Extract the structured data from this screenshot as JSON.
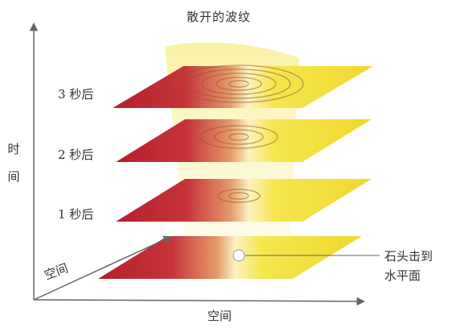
{
  "title": "散开的波纹",
  "axes": {
    "time_label": "时间",
    "space_depth_label": "空间",
    "space_x_label": "空间"
  },
  "layers": [
    {
      "id": "impact",
      "label": "",
      "ripple_rings": 0
    },
    {
      "id": "1s",
      "label": "1 秒后",
      "ripple_rings": 2
    },
    {
      "id": "2s",
      "label": "2 秒后",
      "ripple_rings": 3
    },
    {
      "id": "3s",
      "label": "3 秒后",
      "ripple_rings": 5
    }
  ],
  "callout": {
    "line1": "石头击到",
    "line2": "水平面"
  },
  "colors": {
    "plane_red": "#b8262a",
    "plane_yellow": "#f3e23a",
    "axis": "#666666"
  }
}
